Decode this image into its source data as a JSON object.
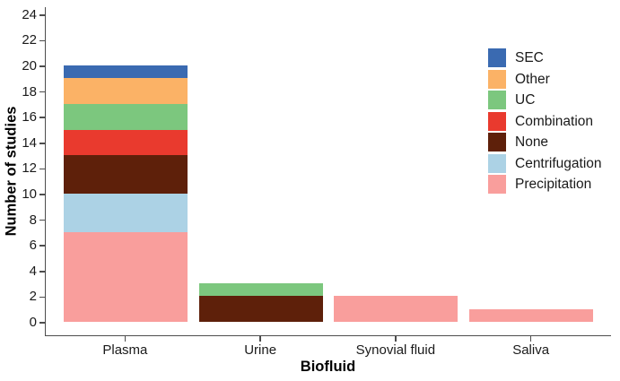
{
  "chart_data": {
    "type": "bar",
    "stacked": true,
    "xlabel": "Biofluid",
    "ylabel": "Number of studies",
    "categories": [
      "Plasma",
      "Urine",
      "Synovial fluid",
      "Saliva"
    ],
    "series": [
      {
        "name": "Precipitation",
        "color": "#F99E9C",
        "values": [
          7,
          0,
          2,
          1
        ]
      },
      {
        "name": "Centrifugation",
        "color": "#ACD2E5",
        "values": [
          3,
          0,
          0,
          0
        ]
      },
      {
        "name": "None",
        "color": "#5E200A",
        "values": [
          3,
          2,
          0,
          0
        ]
      },
      {
        "name": "Combination",
        "color": "#E93A2E",
        "values": [
          2,
          0,
          0,
          0
        ]
      },
      {
        "name": "UC",
        "color": "#7CC77E",
        "values": [
          2,
          1,
          0,
          0
        ]
      },
      {
        "name": "Other",
        "color": "#FBB266",
        "values": [
          2,
          0,
          0,
          0
        ]
      },
      {
        "name": "SEC",
        "color": "#3A6AB1",
        "values": [
          1,
          0,
          0,
          0
        ]
      }
    ],
    "totals": {
      "Plasma": 20,
      "Urine": 3,
      "Synovial fluid": 2,
      "Saliva": 1
    },
    "legend_order": [
      "SEC",
      "Other",
      "UC",
      "Combination",
      "None",
      "Centrifugation",
      "Precipitation"
    ],
    "legend_position": "top-right",
    "y_ticks": [
      0,
      2,
      4,
      6,
      8,
      10,
      12,
      14,
      16,
      18,
      20,
      22,
      24
    ],
    "ylim": [
      0,
      24.6
    ],
    "grid": false,
    "axis_color": "#4D4D4D",
    "text_color": "#1A1A1A"
  }
}
